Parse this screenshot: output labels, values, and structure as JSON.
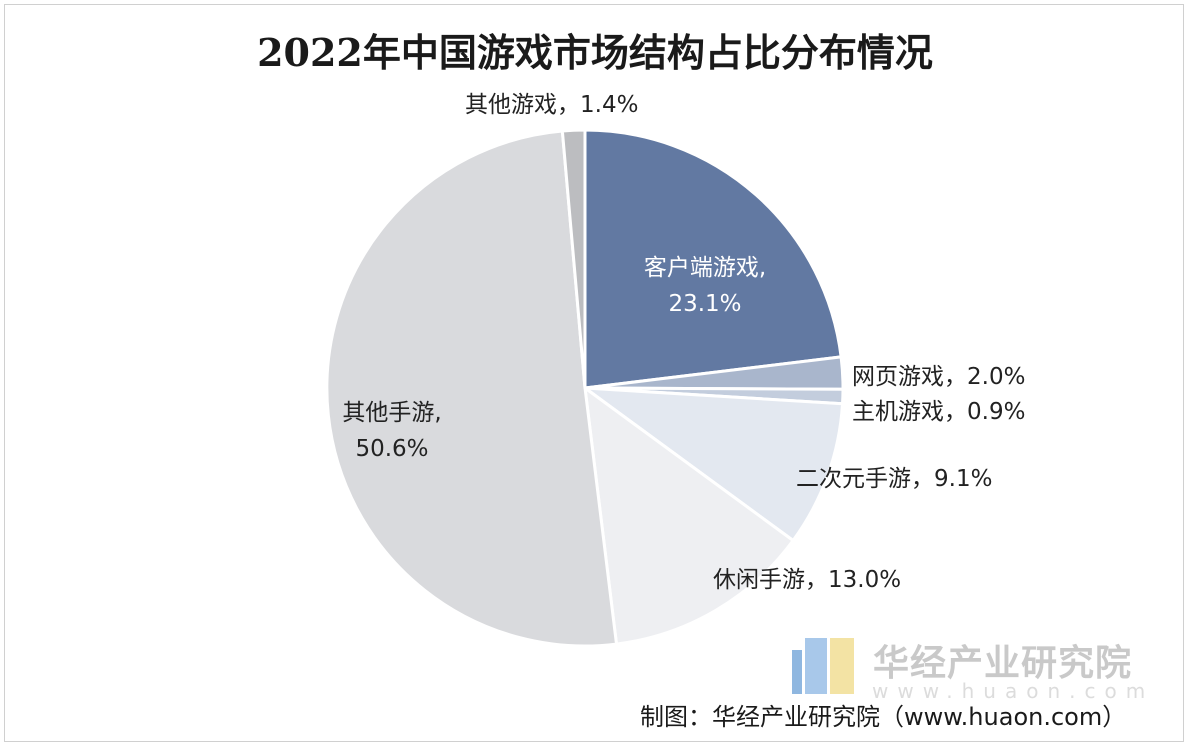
{
  "chart_data": {
    "type": "pie",
    "title": "2022年中国游戏市场结构占比分布情况",
    "unit": "%",
    "slices": [
      {
        "name": "客户端游戏",
        "value": 23.1,
        "label_line1": "客户端游戏,",
        "label_line2": "23.1%",
        "color": "#6279a2"
      },
      {
        "name": "网页游戏",
        "value": 2.0,
        "label_line1": "网页游戏，2.0%",
        "color": "#a9b6cc"
      },
      {
        "name": "主机游戏",
        "value": 0.9,
        "label_line1": "主机游戏，0.9%",
        "color": "#c3cddd"
      },
      {
        "name": "二次元手游",
        "value": 9.1,
        "label_line1": "二次元手游，9.1%",
        "color": "#e3e8f0"
      },
      {
        "name": "休闲手游",
        "value": 13.0,
        "label_line1": "休闲手游，13.0%",
        "color": "#eeeff2"
      },
      {
        "name": "其他手游",
        "value": 50.6,
        "label_line1": "其他手游,",
        "label_line2": "50.6%",
        "color": "#d9dadd"
      },
      {
        "name": "其他游戏",
        "value": 1.4,
        "label_line1": "其他游戏，1.4%",
        "color": "#bcbdc0"
      }
    ]
  },
  "watermark": {
    "brand": "华经产业研究院",
    "url": "www.huaon.com"
  },
  "source": {
    "text": "制图：华经产业研究院（www.huaon.com）"
  },
  "colors": {
    "logo_blue": "#8fb7e0",
    "logo_yellow": "#f3e3a4"
  }
}
